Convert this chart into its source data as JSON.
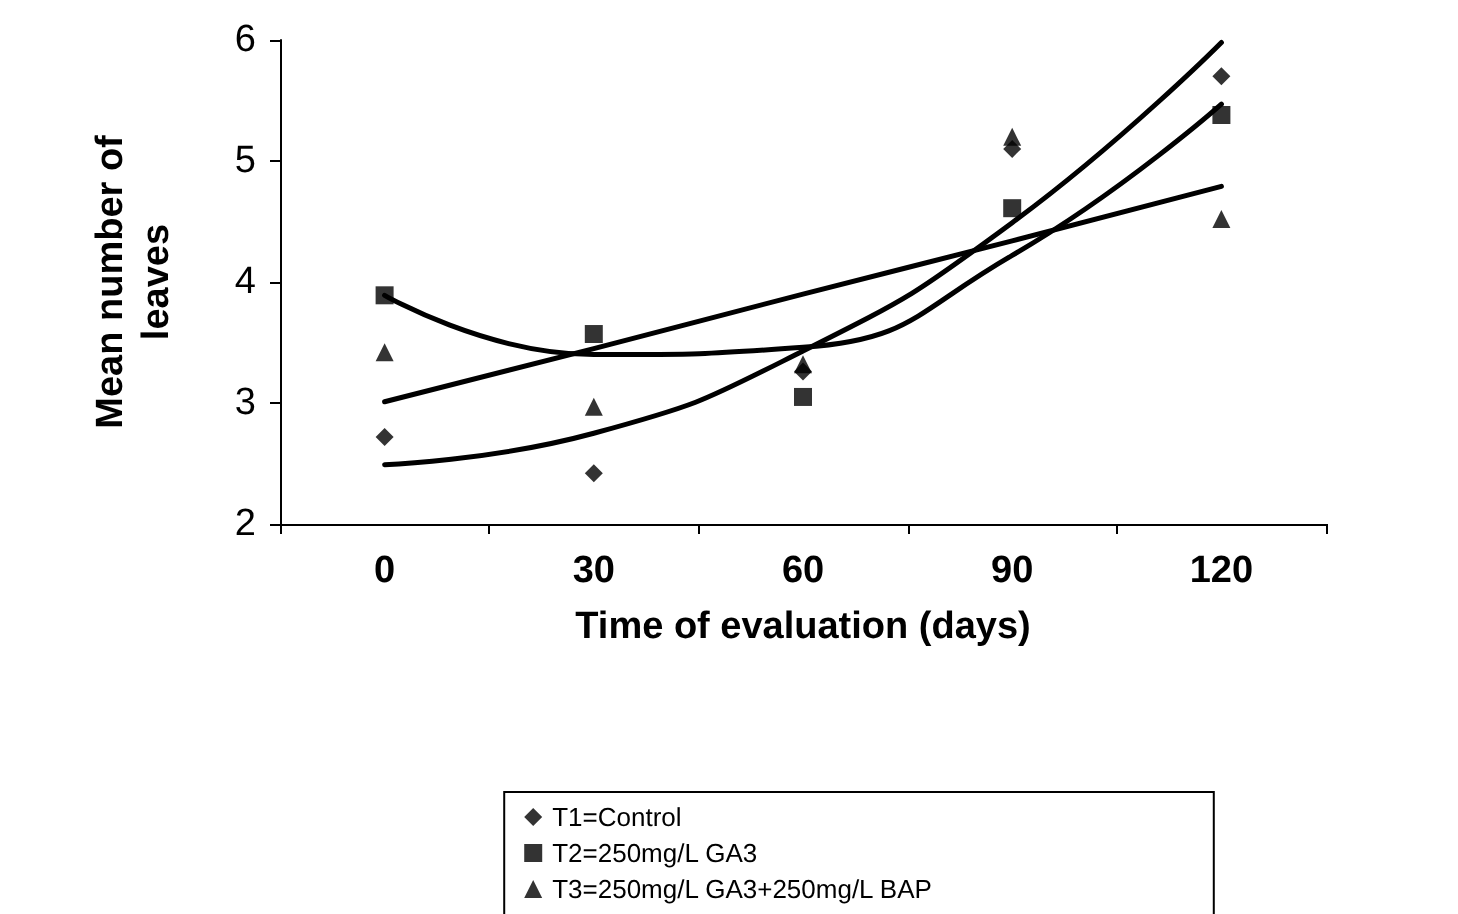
{
  "chart_data": {
    "type": "scatter",
    "xlabel": "Time of evaluation (days)",
    "ylabel": "Mean number of\nleaves",
    "categories": [
      "0",
      "30",
      "60",
      "90",
      "120"
    ],
    "series": [
      {
        "name": "T1=Control",
        "color": "#000000",
        "marker": "diamond",
        "values": [
          2.72,
          2.42,
          3.26,
          5.1,
          5.7
        ]
      },
      {
        "name": "T2=250mg/L GA3",
        "color": "#000000",
        "marker": "square",
        "values": [
          3.89,
          3.57,
          3.05,
          4.61,
          5.38
        ]
      },
      {
        "name": "T3=250mg/L GA3+250mg/L BAP",
        "color": "#000000",
        "marker": "triangle",
        "values": [
          3.42,
          2.97,
          3.32,
          5.2,
          4.52
        ]
      },
      {
        "type": "line",
        "color": "#000000",
        "marker": "none",
        "values": [
          2.49,
          2.75,
          3.43,
          4.49,
          5.98
        ]
      },
      {
        "type": "line",
        "color": "#000000",
        "marker": "none",
        "values": [
          3.89,
          3.4,
          3.46,
          4.22,
          5.47
        ]
      },
      {
        "type": "line",
        "color": "#000000",
        "marker": "none",
        "values": [
          3.01,
          3.45,
          3.9,
          4.34,
          4.79
        ]
      }
    ],
    "ylim": [
      2,
      6
    ],
    "yticks": [
      2,
      3,
      4,
      5,
      6
    ],
    "grid": false,
    "legend": "bottom"
  }
}
